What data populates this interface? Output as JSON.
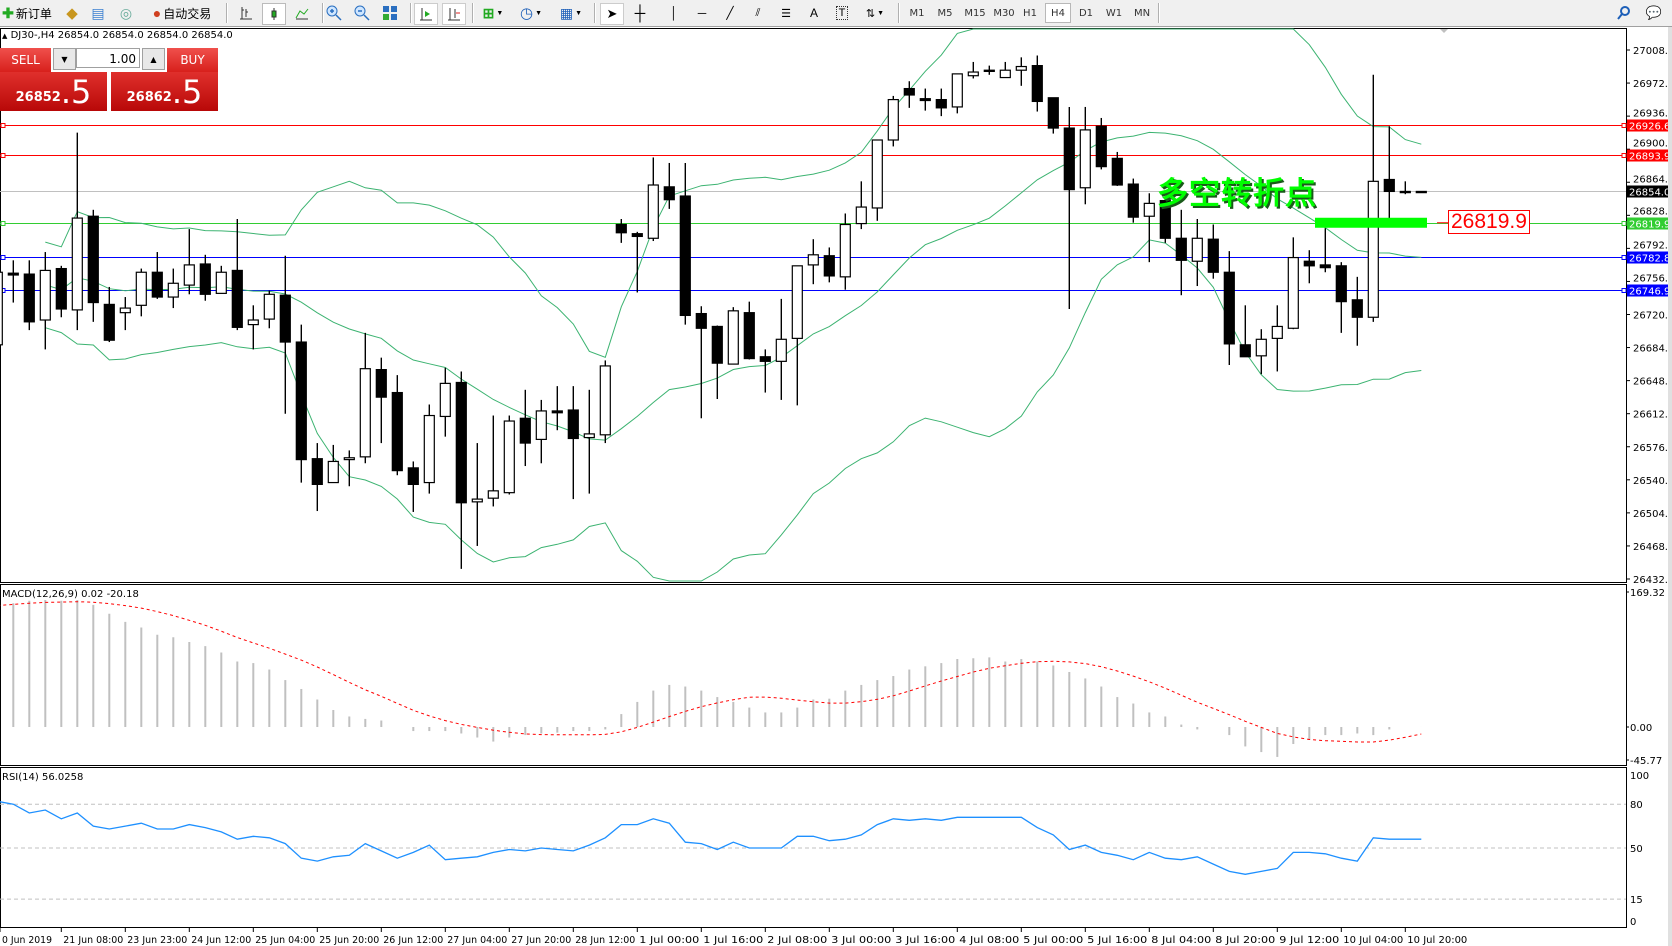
{
  "toolbar": {
    "new_order_label": "新订单",
    "auto_trading_label": "自动交易",
    "timeframes": [
      "M1",
      "M5",
      "M15",
      "M30",
      "H1",
      "H4",
      "D1",
      "W1",
      "MN"
    ],
    "active_timeframe": "H4"
  },
  "chart_header": "DJ30-,H4  26854.0 26854.0 26854.0 26854.0",
  "one_click": {
    "sell_label": "SELL",
    "buy_label": "BUY",
    "lot": "1.00",
    "sell_price_main": "26852",
    "sell_price_frac": ".5",
    "buy_price_main": "26862",
    "buy_price_frac": ".5"
  },
  "annotation": {
    "text": "多空转折点",
    "tag": "26819.9",
    "text_color": "#00ff00"
  },
  "colors": {
    "bull_body": "#ffffff",
    "bear_body": "#000000",
    "bands": "#3cb371",
    "macd_hist": "#c0c0c0",
    "macd_signal": "#ff0000",
    "rsi": "#1e90ff"
  },
  "chart_data": {
    "type": "candlestick",
    "symbol": "DJ30-",
    "timeframe": "H4",
    "price_ticks": [
      "27008.0",
      "26972.0",
      "26936.0",
      "26900.0",
      "26864.0",
      "26828.0",
      "26792.0",
      "26756.0",
      "26720.0",
      "26684.0",
      "26648.0",
      "26612.0",
      "26576.0",
      "26540.0",
      "26504.0",
      "26468.0",
      "26432.0"
    ],
    "price_range": [
      26432,
      27008
    ],
    "time_labels": [
      "0 Jun 2019",
      "21 Jun 08:00",
      "23 Jun 23:00",
      "24 Jun 12:00",
      "25 Jun 04:00",
      "25 Jun 20:00",
      "26 Jun 12:00",
      "27 Jun 04:00",
      "27 Jun 20:00",
      "28 Jun 12:00",
      "1 Jul 00:00",
      "1 Jul 16:00",
      "2 Jul 08:00",
      "3 Jul 00:00",
      "3 Jul 16:00",
      "4 Jul 08:00",
      "5 Jul 00:00",
      "5 Jul 16:00",
      "8 Jul 04:00",
      "8 Jul 20:00",
      "9 Jul 12:00",
      "10 Jul 04:00",
      "10 Jul 20:00"
    ],
    "time_label_every_bars": 4,
    "ohlc": [
      [
        26687,
        26770,
        26680,
        26766
      ],
      [
        26765,
        26779,
        26733,
        26763
      ],
      [
        26764,
        26779,
        26703,
        26712
      ],
      [
        26714,
        26788,
        26682,
        26768
      ],
      [
        26770,
        26773,
        26717,
        26726
      ],
      [
        26725,
        26918,
        26703,
        26825
      ],
      [
        26827,
        26834,
        26712,
        26733
      ],
      [
        26731,
        26750,
        26690,
        26692
      ],
      [
        26722,
        26739,
        26703,
        26727
      ],
      [
        26730,
        26770,
        26718,
        26766
      ],
      [
        26766,
        26788,
        26737,
        26739
      ],
      [
        26739,
        26770,
        26727,
        26754
      ],
      [
        26752,
        26813,
        26742,
        26774
      ],
      [
        26775,
        26785,
        26735,
        26742
      ],
      [
        26743,
        26773,
        26743,
        26766
      ],
      [
        26768,
        26824,
        26703,
        26706
      ],
      [
        26709,
        26730,
        26682,
        26714
      ],
      [
        26715,
        26746,
        26705,
        26742
      ],
      [
        26741,
        26784,
        26612,
        26690
      ],
      [
        26690,
        26709,
        26537,
        26562
      ],
      [
        26563,
        26580,
        26506,
        26535
      ],
      [
        26537,
        26578,
        26537,
        26560
      ],
      [
        26562,
        26572,
        26533,
        26564
      ],
      [
        26565,
        26700,
        26558,
        26661
      ],
      [
        26660,
        26673,
        26580,
        26630
      ],
      [
        26635,
        26654,
        26545,
        26550
      ],
      [
        26553,
        26560,
        26505,
        26535
      ],
      [
        26537,
        26622,
        26525,
        26610
      ],
      [
        26609,
        26662,
        26587,
        26645
      ],
      [
        26646,
        26658,
        26443,
        26515
      ],
      [
        26516,
        26580,
        26468,
        26519
      ],
      [
        26520,
        26610,
        26511,
        26528
      ],
      [
        26526,
        26610,
        26524,
        26604
      ],
      [
        26607,
        26638,
        26555,
        26580
      ],
      [
        26584,
        26627,
        26558,
        26615
      ],
      [
        26615,
        26642,
        26594,
        26613
      ],
      [
        26616,
        26642,
        26519,
        26585
      ],
      [
        26586,
        26638,
        26525,
        26590
      ],
      [
        26589,
        26670,
        26580,
        26664
      ],
      [
        26818,
        26824,
        26798,
        26809
      ],
      [
        26808,
        26810,
        26744,
        26805
      ],
      [
        26803,
        26891,
        26800,
        26861
      ],
      [
        26859,
        26885,
        26835,
        26845
      ],
      [
        26849,
        26885,
        26709,
        26719
      ],
      [
        26721,
        26729,
        26607,
        26705
      ],
      [
        26707,
        26708,
        26628,
        26667
      ],
      [
        26666,
        26728,
        26666,
        26724
      ],
      [
        26722,
        26734,
        26671,
        26672
      ],
      [
        26674,
        26682,
        26635,
        26669
      ],
      [
        26669,
        26737,
        26627,
        26693
      ],
      [
        26694,
        26773,
        26621,
        26773
      ],
      [
        26774,
        26802,
        26753,
        26785
      ],
      [
        26784,
        26793,
        26755,
        26762
      ],
      [
        26761,
        26830,
        26747,
        26818
      ],
      [
        26819,
        26865,
        26813,
        26837
      ],
      [
        26836,
        26910,
        26822,
        26910
      ],
      [
        26910,
        26958,
        26903,
        26954
      ],
      [
        26966,
        26974,
        26945,
        26959
      ],
      [
        26955,
        26966,
        26942,
        26953
      ],
      [
        26954,
        26966,
        26936,
        26945
      ],
      [
        26946,
        26982,
        26939,
        26982
      ],
      [
        26980,
        26995,
        26977,
        26984
      ],
      [
        26985,
        26991,
        26981,
        26986
      ],
      [
        26978,
        26995,
        26978,
        26986
      ],
      [
        26986,
        27000,
        26969,
        26990
      ],
      [
        26991,
        27002,
        26941,
        26952
      ],
      [
        26956,
        26956,
        26917,
        26923
      ],
      [
        26923,
        26946,
        26726,
        26856
      ],
      [
        26858,
        26946,
        26840,
        26921
      ],
      [
        26925,
        26934,
        26878,
        26881
      ],
      [
        26890,
        26897,
        26860,
        26861
      ],
      [
        26862,
        26868,
        26820,
        26826
      ],
      [
        26827,
        26852,
        26777,
        26841
      ],
      [
        26844,
        26845,
        26798,
        26803
      ],
      [
        26803,
        26834,
        26741,
        26779
      ],
      [
        26778,
        26824,
        26751,
        26803
      ],
      [
        26802,
        26818,
        26759,
        26766
      ],
      [
        26766,
        26789,
        26665,
        26688
      ],
      [
        26687,
        26730,
        26674,
        26674
      ],
      [
        26675,
        26704,
        26655,
        26693
      ],
      [
        26694,
        26730,
        26658,
        26707
      ],
      [
        26705,
        26804,
        26704,
        26782
      ],
      [
        26778,
        26790,
        26754,
        26773
      ],
      [
        26774,
        26814,
        26766,
        26771
      ],
      [
        26773,
        26777,
        26700,
        26734
      ],
      [
        26736,
        26761,
        26686,
        26717
      ],
      [
        26717,
        26981,
        26712,
        26865
      ],
      [
        26867,
        26925,
        26824,
        26854
      ],
      [
        26854,
        26865,
        26851,
        26853
      ],
      [
        26854,
        26854,
        26854,
        26854
      ]
    ],
    "bollinger": {
      "period": 20,
      "deviations": 2
    },
    "horizontal_levels": [
      {
        "price": 26926.6,
        "label": "26926.6",
        "color": "#ff0000"
      },
      {
        "price": 26893.9,
        "label": "26893.9",
        "color": "#ff0000"
      },
      {
        "price": 26854.0,
        "label": "26854.0",
        "color": "#c0c0c0",
        "tag_color": "#000000"
      },
      {
        "price": 26819.9,
        "label": "26819.9",
        "color": "#32cd32"
      },
      {
        "price": 26782.8,
        "label": "26782.8",
        "color": "#0000ff"
      },
      {
        "price": 26746.9,
        "label": "26746.9",
        "color": "#0000ff"
      }
    ],
    "macd": {
      "label": "MACD(12,26,9) 0.02 -20.18",
      "axis_labels": [
        "169.32",
        "0.00",
        "-45.77"
      ],
      "range": [
        -45.77,
        169.32
      ],
      "signal_period": 9,
      "values": [
        150,
        153,
        156,
        157,
        156,
        157,
        151,
        140,
        130,
        123,
        114,
        111,
        105,
        100,
        92,
        81,
        79,
        71,
        58,
        47,
        34,
        21,
        13,
        10,
        8,
        0,
        -5,
        -5,
        -5,
        -8,
        -13,
        -18,
        -13,
        -10,
        -8,
        -7,
        -5,
        -5,
        -3,
        16,
        31,
        45,
        52,
        50,
        45,
        37,
        31,
        24,
        18,
        18,
        24,
        34,
        35,
        45,
        52,
        58,
        63,
        71,
        75,
        79,
        84,
        85,
        86,
        81,
        84,
        81,
        76,
        68,
        60,
        50,
        37,
        29,
        18,
        13,
        3,
        -3,
        0,
        -10,
        -24,
        -31,
        -37,
        -21,
        -16,
        -10,
        -10,
        -8,
        -10,
        -3,
        0,
        0.02
      ]
    },
    "rsi": {
      "label": "RSI(14) 56.0258",
      "axis_labels": [
        "100",
        "80",
        "50",
        "15",
        "0"
      ],
      "levels": [
        80,
        50,
        15
      ],
      "range": [
        0,
        100
      ],
      "values": [
        82,
        80,
        74,
        76,
        70,
        74,
        65,
        63,
        65,
        67,
        63,
        63,
        66,
        64,
        61,
        56,
        58,
        57,
        53,
        43,
        41,
        44,
        45,
        53,
        48,
        43,
        47,
        52,
        42,
        43,
        44,
        47,
        49,
        48,
        50,
        49,
        48,
        52,
        57,
        66,
        66,
        70,
        67,
        54,
        53,
        49,
        54,
        50,
        50,
        50,
        58,
        58,
        55,
        56,
        59,
        66,
        70,
        69,
        70,
        69,
        71,
        71,
        71,
        71,
        71,
        64,
        59,
        49,
        52,
        47,
        45,
        42,
        47,
        43,
        42,
        44,
        39,
        34,
        32,
        34,
        36,
        47,
        47,
        46,
        43,
        41,
        57,
        56,
        56,
        56.0258
      ]
    }
  }
}
